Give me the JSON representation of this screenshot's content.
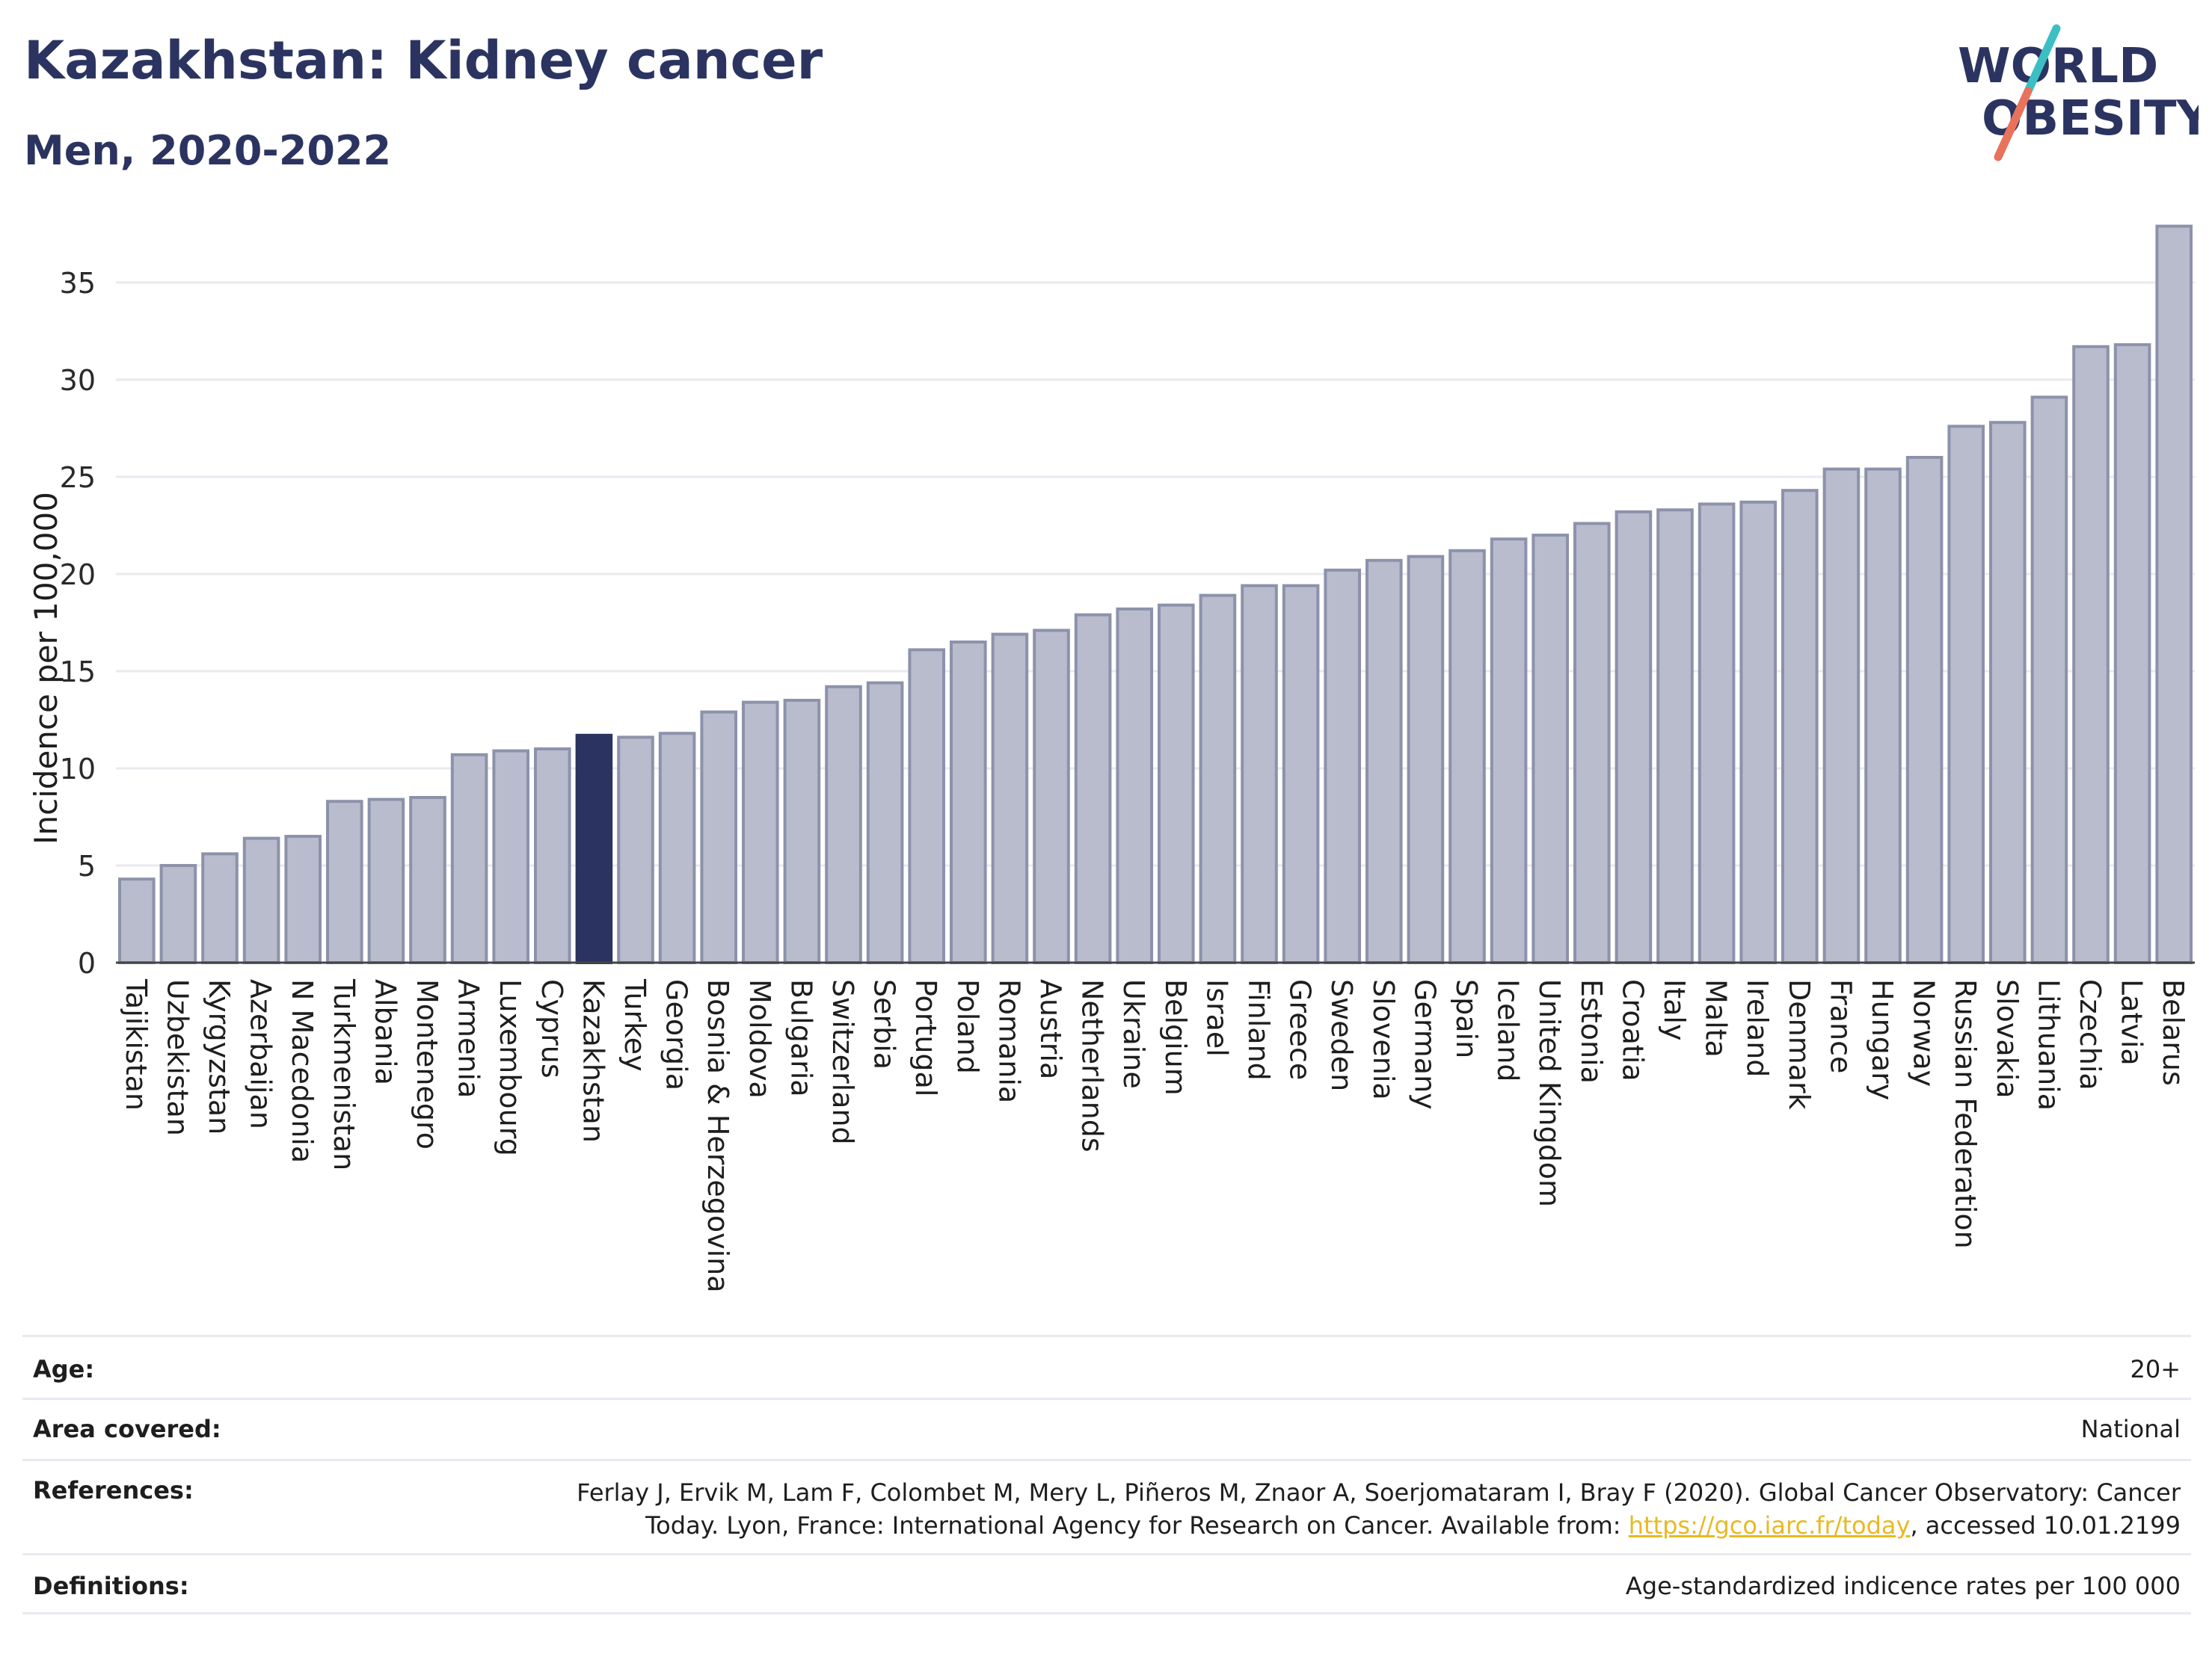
{
  "header": {
    "title": "Kazakhstan: Kidney cancer",
    "subtitle": "Men, 2020-2022"
  },
  "logo": {
    "line1": "WORLD",
    "line2": "OBESITY",
    "slash_colors": [
      "#3bbfc3",
      "#e8725b"
    ]
  },
  "colors": {
    "bar": "#b9bccd",
    "bar_edge": "#8d92ab",
    "highlight": "#2b3460",
    "grid": "#e9eaef",
    "text": "#2b3460"
  },
  "chart_data": {
    "type": "bar",
    "ylabel": "Incidence per 100,000",
    "ylim": [
      0,
      38
    ],
    "yticks": [
      0,
      5,
      10,
      15,
      20,
      25,
      30,
      35
    ],
    "highlight": "Kazakhstan",
    "categories": [
      "Tajikistan",
      "Uzbekistan",
      "Kyrgyzstan",
      "Azerbaijan",
      "N Macedonia",
      "Turkmenistan",
      "Albania",
      "Montenegro",
      "Armenia",
      "Luxembourg",
      "Cyprus",
      "Kazakhstan",
      "Turkey",
      "Georgia",
      "Bosnia & Herzegovina",
      "Moldova",
      "Bulgaria",
      "Switzerland",
      "Serbia",
      "Portugal",
      "Poland",
      "Romania",
      "Austria",
      "Netherlands",
      "Ukraine",
      "Belgium",
      "Israel",
      "Finland",
      "Greece",
      "Sweden",
      "Slovenia",
      "Germany",
      "Spain",
      "Iceland",
      "United Kingdom",
      "Estonia",
      "Croatia",
      "Italy",
      "Malta",
      "Ireland",
      "Denmark",
      "France",
      "Hungary",
      "Norway",
      "Russian Federation",
      "Slovakia",
      "Lithuania",
      "Czechia",
      "Latvia",
      "Belarus"
    ],
    "values": [
      4.3,
      5.0,
      5.6,
      6.4,
      6.5,
      8.3,
      8.4,
      8.5,
      10.7,
      10.9,
      11.0,
      11.7,
      11.6,
      11.8,
      12.9,
      13.4,
      13.5,
      14.2,
      14.4,
      16.1,
      16.5,
      16.9,
      17.1,
      17.9,
      18.2,
      18.4,
      18.9,
      19.4,
      19.4,
      20.2,
      20.7,
      20.9,
      21.2,
      21.8,
      22.0,
      22.6,
      23.2,
      23.3,
      23.6,
      23.7,
      24.3,
      25.4,
      25.4,
      26.0,
      27.6,
      27.8,
      29.1,
      31.7,
      31.8,
      37.9
    ]
  },
  "info": {
    "age": {
      "label": "Age:",
      "value": "20+"
    },
    "area": {
      "label": "Area covered:",
      "value": "National"
    },
    "references": {
      "label": "References:",
      "text1": "Ferlay J, Ervik M, Lam F, Colombet M, Mery L, Piñeros M, Znaor A, Soerjomataram I, Bray F (2020). Global Cancer Observatory: Cancer",
      "text2": "Today. Lyon, France: International Agency for Research on Cancer. Available from: ",
      "link": "https://gco.iarc.fr/today",
      "text3": ", accessed 10.01.2199"
    },
    "definitions": {
      "label": "Definitions:",
      "value": "Age-standardized indicence rates per 100 000"
    }
  }
}
